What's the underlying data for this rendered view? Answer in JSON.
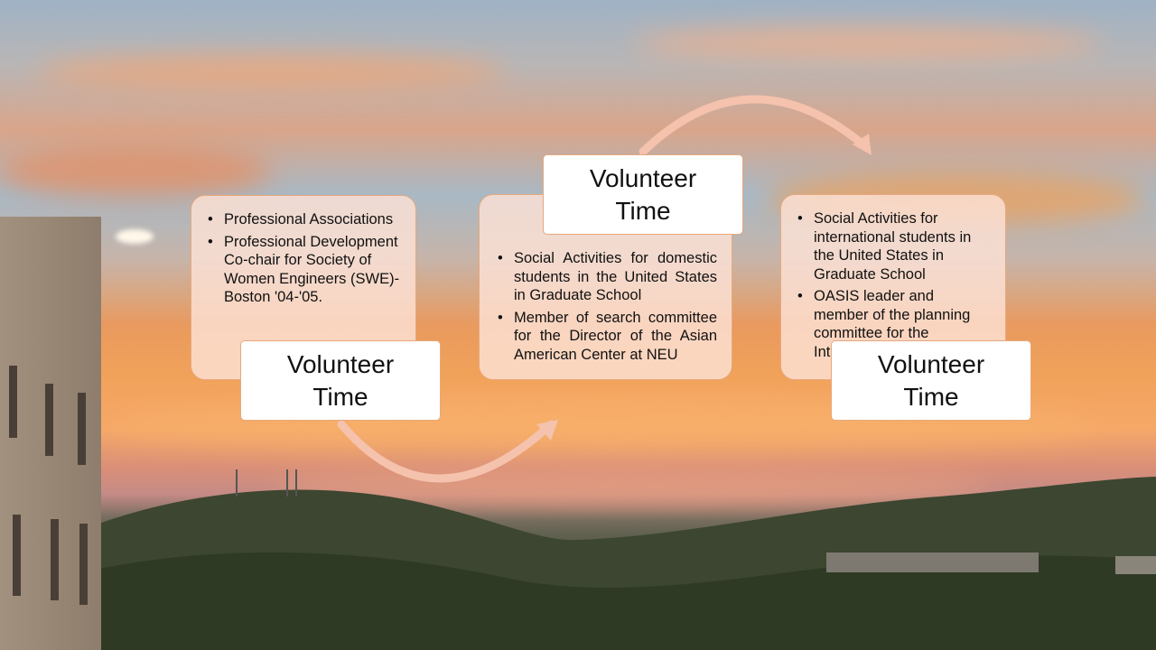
{
  "stages": [
    {
      "label": "Volunteer Time",
      "items": [
        "Professional Associations",
        "Professional Development Co-chair for Society of Women Engineers (SWE)-Boston '04-'05."
      ]
    },
    {
      "label": "Volunteer Time",
      "items": [
        "Social Activities for domestic students in the United States in Graduate School",
        "Member of search committee for the Director of the Asian American Center at NEU"
      ]
    },
    {
      "label": "Volunteer Time",
      "items": [
        "Social Activities for international students in the United States in Graduate School",
        "OASIS leader and member of the planning committee for the International Career"
      ]
    }
  ],
  "colors": {
    "card_fill": "#fce2d6",
    "card_border": "#e7a97d",
    "arrow": "#f5c2ad",
    "label_fill": "#ffffff"
  }
}
